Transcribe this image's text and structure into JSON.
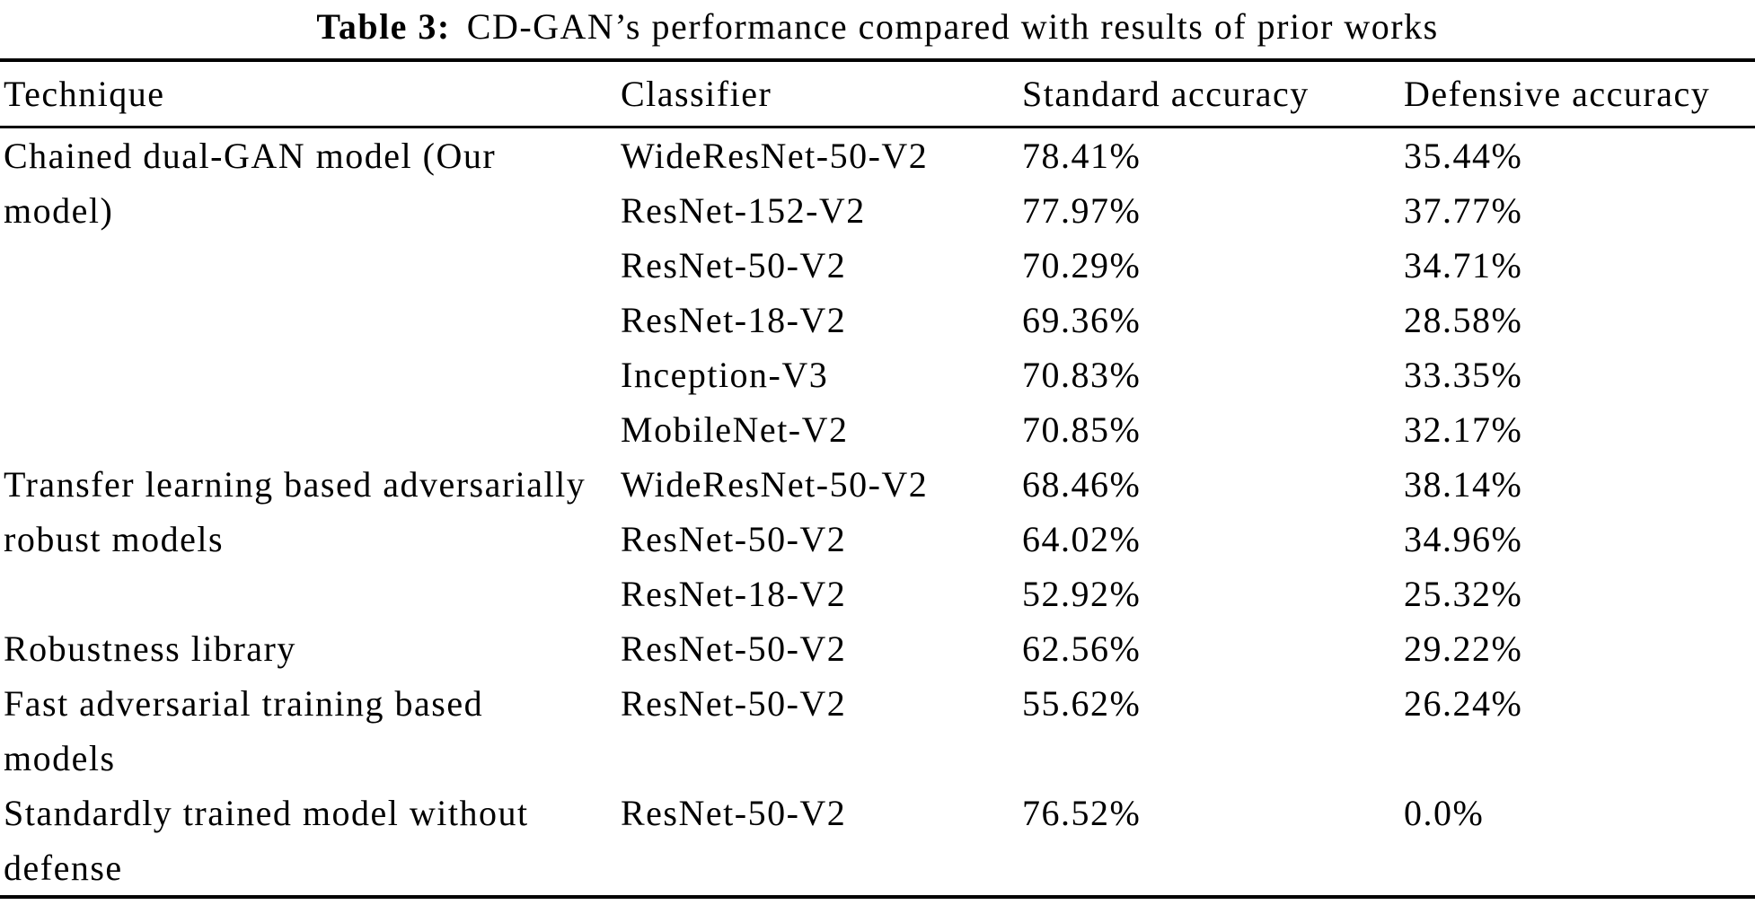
{
  "caption": {
    "label": "Table 3:",
    "text": "CD-GAN’s performance compared with results of prior works"
  },
  "table": {
    "columns": {
      "technique": "Technique",
      "classifier": "Classifier",
      "standard": "Standard accuracy",
      "defensive": "Defensive accuracy"
    },
    "groups": [
      {
        "technique": "Chained dual-GAN model (Our model)",
        "rows": [
          {
            "classifier": "WideResNet-50-V2",
            "standard": "78.41%",
            "defensive": "35.44%"
          },
          {
            "classifier": "ResNet-152-V2",
            "standard": "77.97%",
            "defensive": "37.77%"
          },
          {
            "classifier": "ResNet-50-V2",
            "standard": "70.29%",
            "defensive": "34.71%"
          },
          {
            "classifier": "ResNet-18-V2",
            "standard": "69.36%",
            "defensive": "28.58%"
          },
          {
            "classifier": "Inception-V3",
            "standard": "70.83%",
            "defensive": "33.35%"
          },
          {
            "classifier": "MobileNet-V2",
            "standard": "70.85%",
            "defensive": "32.17%"
          }
        ]
      },
      {
        "technique": "Transfer learning based adversarially robust models",
        "rows": [
          {
            "classifier": "WideResNet-50-V2",
            "standard": "68.46%",
            "defensive": "38.14%"
          },
          {
            "classifier": "ResNet-50-V2",
            "standard": "64.02%",
            "defensive": "34.96%"
          },
          {
            "classifier": "ResNet-18-V2",
            "standard": "52.92%",
            "defensive": "25.32%"
          }
        ]
      },
      {
        "technique": "Robustness library",
        "rows": [
          {
            "classifier": "ResNet-50-V2",
            "standard": "62.56%",
            "defensive": "29.22%"
          }
        ]
      },
      {
        "technique": "Fast adversarial training based models",
        "rows": [
          {
            "classifier": "ResNet-50-V2",
            "standard": "55.62%",
            "defensive": "26.24%"
          }
        ]
      },
      {
        "technique": "Standardly trained model without defense",
        "rows": [
          {
            "classifier": "ResNet-50-V2",
            "standard": "76.52%",
            "defensive": "0.0%"
          }
        ]
      }
    ]
  }
}
